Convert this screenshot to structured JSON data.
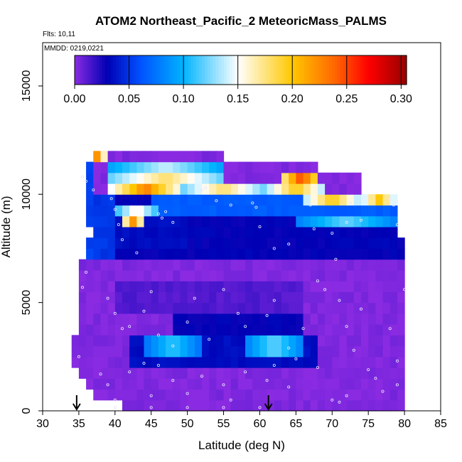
{
  "chart_data": {
    "type": "heatmap",
    "title": "ATOM2 Northeast_Pacific_2 MeteoricMass_PALMS",
    "flights_label": "Flts: 10,11",
    "dates_label": "MMDD: 0219,0221",
    "xlabel": "Latitude (deg N)",
    "ylabel": "Altitude (m)",
    "xlim": [
      30,
      85
    ],
    "ylim": [
      0,
      17000
    ],
    "x_ticks": [
      "30",
      "35",
      "40",
      "45",
      "50",
      "55",
      "60",
      "65",
      "70",
      "75",
      "80",
      "85"
    ],
    "y_ticks": [
      "0",
      "5000",
      "10000",
      "15000"
    ],
    "colorbar": {
      "range": [
        0,
        0.305
      ],
      "ticks": [
        "0.00",
        "0.05",
        "0.10",
        "0.15",
        "0.20",
        "0.25",
        "0.30"
      ],
      "stops": [
        {
          "v": 0.0,
          "c": "#8a2be2"
        },
        {
          "v": 0.03,
          "c": "#0000b4"
        },
        {
          "v": 0.06,
          "c": "#0050ff"
        },
        {
          "v": 0.1,
          "c": "#00b4ff"
        },
        {
          "v": 0.15,
          "c": "#ffffff"
        },
        {
          "v": 0.2,
          "c": "#ffc800"
        },
        {
          "v": 0.24,
          "c": "#ff6400"
        },
        {
          "v": 0.27,
          "c": "#ff0000"
        },
        {
          "v": 0.305,
          "c": "#960000"
        }
      ]
    },
    "markers_latitude": [
      34.7,
      61.2
    ],
    "grid_lat_step": 1,
    "grid_alt_step": 500,
    "profile": {
      "alt": [
        0,
        500,
        1000,
        1500,
        2000,
        2500,
        3000,
        3500,
        4000,
        4500,
        5000,
        5500,
        6000,
        6500,
        7000,
        7500,
        8000,
        8500,
        9000,
        9500,
        10000,
        10500,
        11000,
        11500
      ],
      "upper": [
        80,
        80,
        80,
        80,
        80,
        80,
        80,
        80,
        80,
        80,
        80,
        80,
        80,
        80,
        80,
        80,
        79,
        79,
        79,
        79,
        74,
        74,
        68,
        55
      ],
      "lower": [
        41,
        37,
        36,
        35,
        34,
        34,
        34,
        35,
        35,
        35,
        35,
        35,
        35,
        35,
        36,
        36,
        37,
        36,
        36,
        36,
        36,
        36,
        36,
        37
      ]
    },
    "features": [
      {
        "lat0": 39.5,
        "lat1": 49,
        "alt0": 10000,
        "alt1": 10500,
        "v": 0.23
      },
      {
        "lat0": 49,
        "lat1": 61,
        "alt0": 10000,
        "alt1": 10500,
        "v": 0.18
      },
      {
        "lat0": 61,
        "lat1": 69,
        "alt0": 10000,
        "alt1": 10500,
        "v": 0.2
      },
      {
        "lat0": 63,
        "lat1": 68.5,
        "alt0": 10500,
        "alt1": 11000,
        "v": 0.25
      },
      {
        "lat0": 39,
        "lat1": 55,
        "alt0": 10500,
        "alt1": 11000,
        "v": 0.18
      },
      {
        "lat0": 39,
        "lat1": 55,
        "alt0": 11000,
        "alt1": 11500,
        "v": 0.14
      },
      {
        "lat0": 37.4,
        "lat1": 38.2,
        "alt0": 11500,
        "alt1": 12000,
        "v": 0.3
      },
      {
        "lat0": 36,
        "lat1": 37.4,
        "alt0": 11500,
        "alt1": 12000,
        "v": 0.13
      },
      {
        "lat0": 38.2,
        "lat1": 39.5,
        "alt0": 11500,
        "alt1": 12000,
        "v": 0.2
      },
      {
        "lat0": 66,
        "lat1": 74,
        "alt0": 9500,
        "alt1": 10000,
        "v": 0.2
      },
      {
        "lat0": 74,
        "lat1": 79,
        "alt0": 9500,
        "alt1": 10000,
        "v": 0.2
      },
      {
        "lat0": 40,
        "lat1": 46,
        "alt0": 9000,
        "alt1": 9500,
        "v": 0.16
      },
      {
        "lat0": 41,
        "lat1": 44,
        "alt0": 8500,
        "alt1": 9000,
        "v": 0.22
      },
      {
        "lat0": 65,
        "lat1": 79,
        "alt0": 8500,
        "alt1": 9000,
        "v": 0.12
      },
      {
        "lat0": 44,
        "lat1": 52,
        "alt0": 2500,
        "alt1": 3500,
        "v": 0.11
      },
      {
        "lat0": 58,
        "lat1": 66,
        "alt0": 2500,
        "alt1": 3500,
        "v": 0.12
      }
    ],
    "samples": [
      [
        35.5,
        10800
      ],
      [
        36,
        10600
      ],
      [
        37,
        10200
      ],
      [
        39.5,
        9800
      ],
      [
        40,
        9300
      ],
      [
        40.5,
        8600
      ],
      [
        41,
        7900
      ],
      [
        43,
        7300
      ],
      [
        46,
        9100
      ],
      [
        46.5,
        8900
      ],
      [
        47,
        9200
      ],
      [
        48,
        8700
      ],
      [
        52,
        10200
      ],
      [
        52.5,
        10300
      ],
      [
        54,
        9700
      ],
      [
        56,
        9500
      ],
      [
        59,
        9600
      ],
      [
        59.5,
        9400
      ],
      [
        60,
        8500
      ],
      [
        62,
        7500
      ],
      [
        64,
        7700
      ],
      [
        67,
        9500
      ],
      [
        67.5,
        8400
      ],
      [
        70,
        8200
      ],
      [
        70.5,
        7000
      ],
      [
        72,
        8700
      ],
      [
        72.5,
        9600
      ],
      [
        74,
        8800
      ],
      [
        78,
        9800
      ],
      [
        78.5,
        9500
      ],
      [
        79,
        8600
      ],
      [
        36,
        6400
      ],
      [
        35.5,
        5700
      ],
      [
        39,
        5200
      ],
      [
        40,
        4500
      ],
      [
        41,
        3800
      ],
      [
        42,
        3900
      ],
      [
        45,
        5500
      ],
      [
        44,
        4600
      ],
      [
        46,
        3500
      ],
      [
        48,
        3000
      ],
      [
        50,
        4100
      ],
      [
        51,
        5200
      ],
      [
        53,
        3300
      ],
      [
        55,
        5600
      ],
      [
        57,
        4500
      ],
      [
        58,
        3900
      ],
      [
        61,
        4400
      ],
      [
        62,
        5100
      ],
      [
        64,
        2900
      ],
      [
        65,
        2400
      ],
      [
        66,
        3800
      ],
      [
        68,
        6000
      ],
      [
        69,
        5600
      ],
      [
        71,
        5100
      ],
      [
        72,
        3900
      ],
      [
        73,
        2800
      ],
      [
        74,
        4700
      ],
      [
        76,
        1500
      ],
      [
        78,
        3800
      ],
      [
        79,
        2300
      ],
      [
        80,
        5600
      ],
      [
        35,
        2500
      ],
      [
        38,
        1700
      ],
      [
        39,
        1200
      ],
      [
        40,
        500
      ],
      [
        42,
        1800
      ],
      [
        44,
        2200
      ],
      [
        45,
        700
      ],
      [
        46,
        2100
      ],
      [
        48,
        1400
      ],
      [
        50,
        800
      ],
      [
        52,
        1600
      ],
      [
        55,
        1200
      ],
      [
        56,
        500
      ],
      [
        58,
        1800
      ],
      [
        61,
        1400
      ],
      [
        62,
        2100
      ],
      [
        64,
        1100
      ],
      [
        68,
        2000
      ],
      [
        70,
        500
      ],
      [
        71,
        400
      ],
      [
        72,
        700
      ],
      [
        75,
        1900
      ],
      [
        77,
        900
      ],
      [
        79,
        1200
      ],
      [
        40,
        150
      ],
      [
        45,
        150
      ],
      [
        50,
        150
      ],
      [
        55,
        150
      ],
      [
        60,
        150
      ]
    ]
  }
}
